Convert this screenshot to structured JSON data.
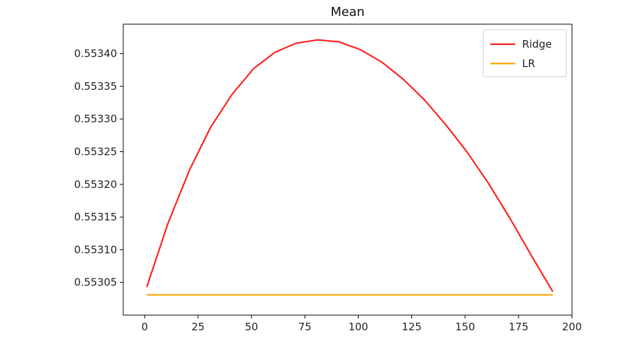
{
  "chart_data": {
    "type": "line",
    "title": "Mean",
    "xlabel": "",
    "ylabel": "",
    "xlim": [
      -10,
      200
    ],
    "ylim": [
      0.553,
      0.553445
    ],
    "xticks": [
      0,
      25,
      50,
      75,
      100,
      125,
      150,
      175,
      200
    ],
    "xtick_labels": [
      "0",
      "25",
      "50",
      "75",
      "100",
      "125",
      "150",
      "175",
      "200"
    ],
    "yticks": [
      0.55305,
      0.5531,
      0.55315,
      0.5532,
      0.55325,
      0.5533,
      0.55335,
      0.5534
    ],
    "ytick_labels": [
      "0.55305",
      "0.55310",
      "0.55315",
      "0.55320",
      "0.55325",
      "0.55330",
      "0.55335",
      "0.55340"
    ],
    "grid": false,
    "legend_position": "top-right",
    "series": [
      {
        "name": "Ridge",
        "color": "#ff2020",
        "x": [
          1,
          11,
          21,
          31,
          41,
          51,
          61,
          71,
          81,
          91,
          101,
          111,
          121,
          131,
          141,
          151,
          161,
          171,
          181,
          191
        ],
        "y": [
          0.553043,
          0.553141,
          0.553222,
          0.553288,
          0.553338,
          0.553377,
          0.553402,
          0.553416,
          0.553421,
          0.553418,
          0.553406,
          0.553387,
          0.553361,
          0.553329,
          0.553291,
          0.553249,
          0.553201,
          0.553148,
          0.553091,
          0.553036
        ]
      },
      {
        "name": "LR",
        "color": "#ffa500",
        "x": [
          1,
          191
        ],
        "y": [
          0.553031,
          0.553031
        ]
      }
    ]
  }
}
